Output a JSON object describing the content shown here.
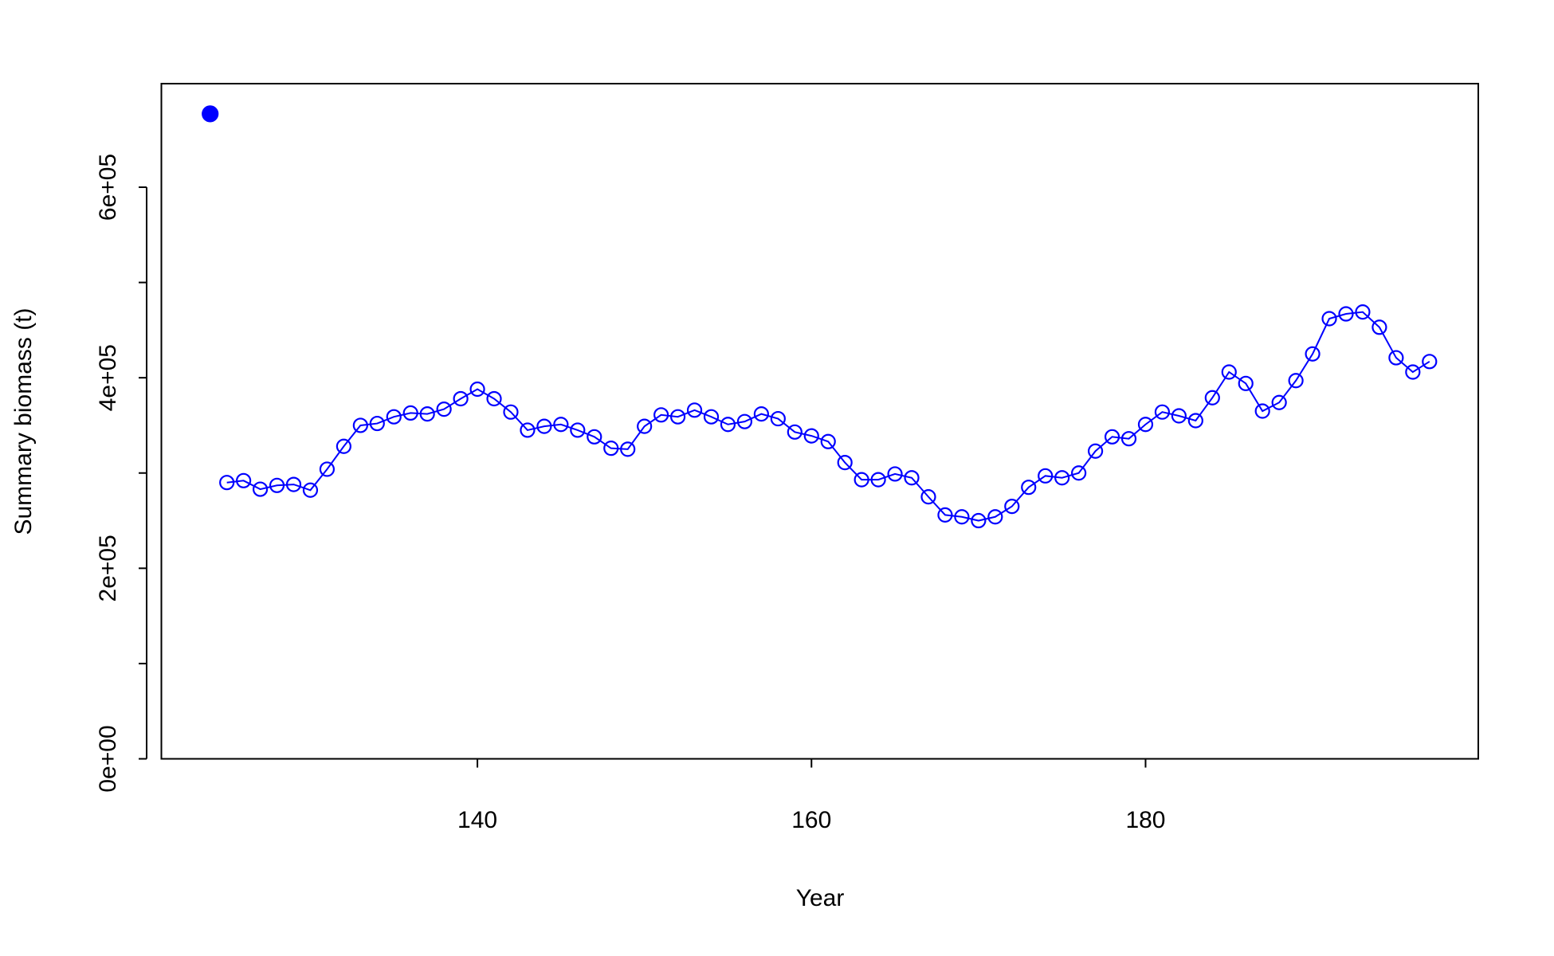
{
  "chart_data": {
    "type": "line",
    "xlabel": "Year",
    "ylabel": "Summary biomass (t)",
    "xlim": [
      121.08,
      199.92
    ],
    "ylim": [
      0,
      708700
    ],
    "xticks": [
      140,
      160,
      180
    ],
    "yticks": [
      {
        "value": 0,
        "label": "0e+00"
      },
      {
        "value": 200000,
        "label": "2e+05"
      },
      {
        "value": 400000,
        "label": "4e+05"
      },
      {
        "value": 600000,
        "label": "6e+05"
      }
    ],
    "yminor_ticks": [
      100000,
      300000,
      500000
    ],
    "grid": false,
    "series": [
      {
        "color": "#0000ff",
        "marker": "open",
        "line": true,
        "x": [
          125,
          126,
          127,
          128,
          129,
          130,
          131,
          132,
          133,
          134,
          135,
          136,
          137,
          138,
          139,
          140,
          141,
          142,
          143,
          144,
          145,
          146,
          147,
          148,
          149,
          150,
          151,
          152,
          153,
          154,
          155,
          156,
          157,
          158,
          159,
          160,
          161,
          162,
          163,
          164,
          165,
          166,
          167,
          168,
          169,
          170,
          171,
          172,
          173,
          174,
          175,
          176,
          177,
          178,
          179,
          180,
          181,
          182,
          183,
          184,
          185,
          186,
          187,
          188,
          189,
          190,
          191,
          192,
          193,
          194,
          195,
          196,
          197
        ],
        "values": [
          290000,
          292000,
          283000,
          287000,
          288000,
          282000,
          304000,
          328000,
          350000,
          352000,
          359000,
          363000,
          362000,
          367000,
          378000,
          388000,
          378000,
          364000,
          345000,
          349000,
          351000,
          345000,
          338000,
          326000,
          325000,
          349000,
          361000,
          359000,
          366000,
          359000,
          351000,
          354000,
          362000,
          357000,
          343000,
          339000,
          333000,
          311000,
          293000,
          293000,
          299000,
          295000,
          275000,
          256000,
          254000,
          250000,
          254000,
          265000,
          285000,
          297000,
          295000,
          300000,
          323000,
          338000,
          336000,
          351000,
          364000,
          360000,
          355000,
          379000,
          406000,
          394000,
          365000,
          374000,
          397000,
          425000,
          462000,
          467000,
          469000,
          453000,
          421000,
          406000,
          417000
        ]
      },
      {
        "color": "#0000ff",
        "marker": "filled",
        "line": false,
        "x": [
          124
        ],
        "values": [
          677000
        ]
      }
    ]
  }
}
